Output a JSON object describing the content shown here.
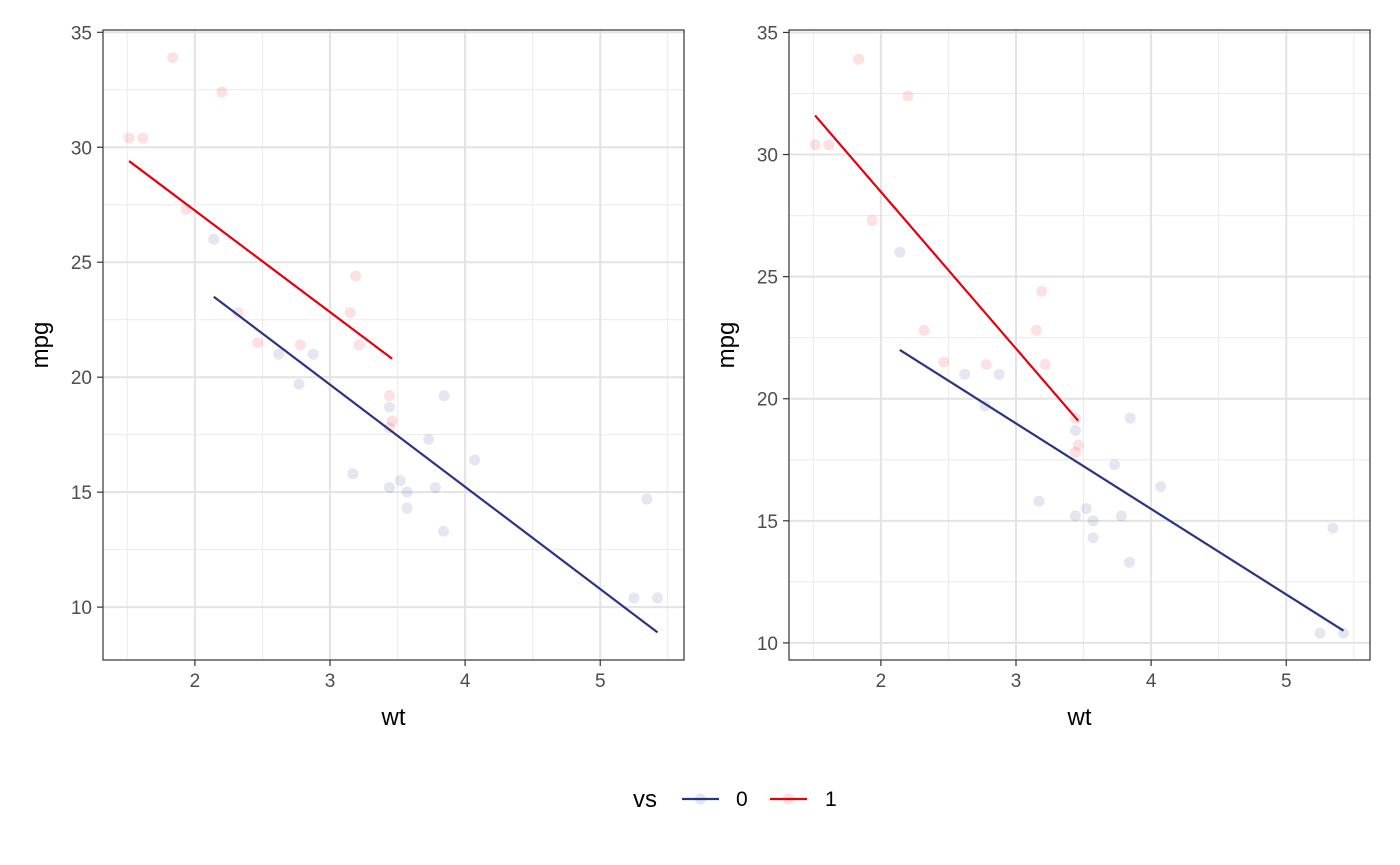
{
  "chart_data": [
    {
      "type": "scatter",
      "panel": "left",
      "xlabel": "wt",
      "ylabel": "mpg",
      "xlim": [
        1.32,
        5.62
      ],
      "ylim": [
        7.7,
        35.1
      ],
      "xticks": [
        2,
        3,
        4,
        5
      ],
      "yticks": [
        10,
        15,
        20,
        25,
        30,
        35
      ],
      "xticks_minor": [
        1.5,
        2.5,
        3.5,
        4.5,
        5.5
      ],
      "yticks_minor": [
        12.5,
        17.5,
        22.5,
        27.5,
        32.5
      ],
      "grid": true,
      "series": [
        {
          "name": "0",
          "color": "#2a3580",
          "points": [
            [
              2.14,
              26.0
            ],
            [
              2.62,
              21.0
            ],
            [
              2.875,
              21.0
            ],
            [
              2.77,
              19.7
            ],
            [
              3.17,
              15.8
            ],
            [
              3.44,
              18.7
            ],
            [
              3.44,
              15.2
            ],
            [
              3.52,
              15.5
            ],
            [
              3.57,
              15.0
            ],
            [
              3.57,
              14.3
            ],
            [
              3.73,
              17.3
            ],
            [
              3.78,
              15.2
            ],
            [
              3.84,
              13.3
            ],
            [
              3.845,
              19.2
            ],
            [
              4.07,
              16.4
            ],
            [
              5.25,
              10.4
            ],
            [
              5.345,
              14.7
            ],
            [
              5.424,
              10.4
            ]
          ],
          "line": [
            [
              2.14,
              23.5
            ],
            [
              5.424,
              8.9
            ]
          ]
        },
        {
          "name": "1",
          "color": "#e3000f",
          "points": [
            [
              1.513,
              30.4
            ],
            [
              1.615,
              30.4
            ],
            [
              1.835,
              33.9
            ],
            [
              1.935,
              27.3
            ],
            [
              2.2,
              32.4
            ],
            [
              2.32,
              22.8
            ],
            [
              2.465,
              21.5
            ],
            [
              2.78,
              21.4
            ],
            [
              3.15,
              22.8
            ],
            [
              3.19,
              24.4
            ],
            [
              3.215,
              21.4
            ],
            [
              3.44,
              19.2
            ],
            [
              3.46,
              18.1
            ],
            [
              3.44,
              17.8
            ]
          ],
          "line": [
            [
              1.513,
              29.4
            ],
            [
              3.46,
              20.8
            ]
          ]
        }
      ]
    },
    {
      "type": "scatter",
      "panel": "right",
      "xlabel": "wt",
      "ylabel": "mpg",
      "xlim": [
        1.32,
        5.62
      ],
      "ylim": [
        9.3,
        35.1
      ],
      "xticks": [
        2,
        3,
        4,
        5
      ],
      "yticks": [
        10,
        15,
        20,
        25,
        30,
        35
      ],
      "xticks_minor": [
        1.5,
        2.5,
        3.5,
        4.5,
        5.5
      ],
      "yticks_minor": [
        12.5,
        17.5,
        22.5,
        27.5,
        32.5
      ],
      "grid": true,
      "series": [
        {
          "name": "0",
          "color": "#2a3580",
          "points": [
            [
              2.14,
              26.0
            ],
            [
              2.62,
              21.0
            ],
            [
              2.875,
              21.0
            ],
            [
              2.77,
              19.7
            ],
            [
              3.17,
              15.8
            ],
            [
              3.44,
              18.7
            ],
            [
              3.44,
              15.2
            ],
            [
              3.52,
              15.5
            ],
            [
              3.57,
              15.0
            ],
            [
              3.57,
              14.3
            ],
            [
              3.73,
              17.3
            ],
            [
              3.78,
              15.2
            ],
            [
              3.84,
              13.3
            ],
            [
              3.845,
              19.2
            ],
            [
              4.07,
              16.4
            ],
            [
              5.25,
              10.4
            ],
            [
              5.345,
              14.7
            ],
            [
              5.424,
              10.4
            ]
          ],
          "line": [
            [
              2.14,
              22.0
            ],
            [
              5.424,
              10.5
            ]
          ]
        },
        {
          "name": "1",
          "color": "#e3000f",
          "points": [
            [
              1.513,
              30.4
            ],
            [
              1.615,
              30.4
            ],
            [
              1.835,
              33.9
            ],
            [
              1.935,
              27.3
            ],
            [
              2.2,
              32.4
            ],
            [
              2.32,
              22.8
            ],
            [
              2.465,
              21.5
            ],
            [
              2.78,
              21.4
            ],
            [
              3.15,
              22.8
            ],
            [
              3.19,
              24.4
            ],
            [
              3.215,
              21.4
            ],
            [
              3.44,
              19.2
            ],
            [
              3.46,
              18.1
            ],
            [
              3.44,
              17.8
            ]
          ],
          "line": [
            [
              1.513,
              31.6
            ],
            [
              3.46,
              19.1
            ]
          ]
        }
      ]
    }
  ],
  "legend": {
    "title": "vs",
    "position": "bottom",
    "items": [
      {
        "label": "0",
        "color": "#2a3580"
      },
      {
        "label": "1",
        "color": "#e3000f"
      }
    ]
  }
}
